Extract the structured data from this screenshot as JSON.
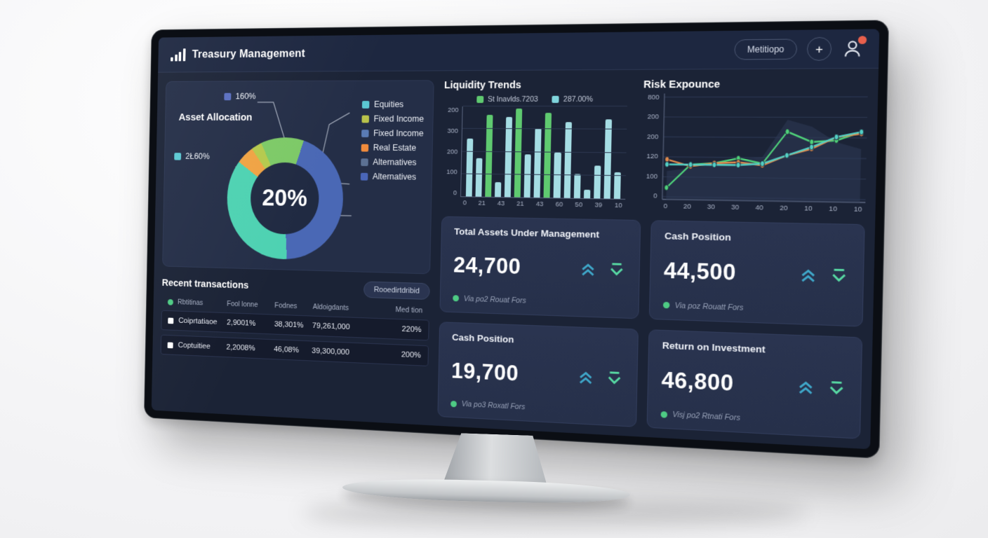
{
  "header": {
    "title": "Treasury Management",
    "menu_button_label": "Metitiopo",
    "add_button_label": "+",
    "notification_dot_color": "#e8604c"
  },
  "asset_allocation": {
    "title": "Asset Allocation",
    "center_value": "20%",
    "callout_labels": [
      {
        "label": "160%",
        "color": "#5a6fc0"
      },
      {
        "label": "2Ł60%",
        "color": "#5bc8d2"
      }
    ],
    "legend": [
      {
        "label": "Equities",
        "color": "#5bc8d2"
      },
      {
        "label": "Fixed Income",
        "color": "#b8c24b"
      },
      {
        "label": "Fixed Income",
        "color": "#5a7bb5"
      },
      {
        "label": "Real Estate",
        "color": "#f08b3c"
      },
      {
        "label": "Alternatives",
        "color": "#5c7193"
      },
      {
        "label": "Alternatives",
        "color": "#4a66b8"
      }
    ],
    "chart_data": {
      "type": "pie",
      "donut": true,
      "start_angle_deg": -25,
      "segments": [
        {
          "name": "Fixed Income",
          "color": "#7dc967",
          "value": 12
        },
        {
          "name": "Alternatives",
          "color": "#4a68b5",
          "value": 44
        },
        {
          "name": "Equities",
          "color": "#4ed2b2",
          "value": 36
        },
        {
          "name": "Real Estate",
          "color": "#f0a344",
          "value": 5
        },
        {
          "name": "Fixed Income",
          "color": "#b5c94d",
          "value": 3
        }
      ]
    }
  },
  "liquidity_trends": {
    "title": "Liquidity Trends",
    "legend": [
      {
        "label": "St Inavlds.7203",
        "color": "#5fca70"
      },
      {
        "label": "287.00%",
        "color": "#7fd4dc"
      }
    ],
    "chart_data": {
      "type": "bar",
      "y_tick_labels": [
        "200",
        "300",
        "200",
        "100",
        "0"
      ],
      "x_tick_labels": [
        "0",
        "21",
        "43",
        "21",
        "43",
        "60",
        "50",
        "39",
        "10"
      ],
      "ylim": [
        0,
        210
      ],
      "values": [
        135,
        90,
        190,
        35,
        185,
        205,
        100,
        160,
        195,
        105,
        175,
        55,
        20,
        75,
        180,
        60
      ],
      "bar_colors": [
        "#a5dde4",
        "#a5dde4",
        "#5fca70",
        "#a5dde4",
        "#a5dde4",
        "#5fca70",
        "#a5dde4",
        "#a5dde4",
        "#5fca70",
        "#a5dde4",
        "#a5dde4",
        "#a5dde4",
        "#a5dde4",
        "#a5dde4",
        "#a5dde4",
        "#a5dde4"
      ]
    }
  },
  "risk_exposure": {
    "title": "Risk Expounce",
    "chart_data": {
      "type": "line",
      "y_tick_labels": [
        "800",
        "200",
        "200",
        "120",
        "100",
        "0"
      ],
      "x_tick_labels": [
        "0",
        "20",
        "30",
        "30",
        "40",
        "20",
        "10",
        "10",
        "10"
      ],
      "ylim": [
        0,
        300
      ],
      "series": [
        {
          "name": "background-area",
          "kind": "area",
          "color": "#2e3a55",
          "values": [
            80,
            90,
            100,
            115,
            125,
            235,
            215,
            170,
            150
          ]
        },
        {
          "name": "green-series",
          "kind": "line",
          "color": "#4fd17a",
          "values": [
            30,
            100,
            105,
            120,
            105,
            200,
            170,
            175,
            200
          ]
        },
        {
          "name": "orange-series",
          "kind": "line",
          "color": "#e08b4e",
          "values": [
            115,
            95,
            105,
            108,
            100,
            130,
            150,
            185,
            195
          ]
        },
        {
          "name": "teal-series",
          "kind": "line",
          "color": "#53cfc4",
          "values": [
            100,
            100,
            100,
            100,
            105,
            130,
            155,
            185,
            200
          ]
        }
      ]
    }
  },
  "stat_cards": [
    {
      "title": "Total Assets Under Management",
      "value": "24,700",
      "footer": "Via po2 Rouat Fors"
    },
    {
      "title": "Cash Position",
      "value": "44,500",
      "footer": "Via poz Rouatt Fors"
    },
    {
      "title": "Cash Position",
      "value": "19,700",
      "footer": "Via po3 Roxatl Fors"
    },
    {
      "title": "Return on Investment",
      "value": "46,800",
      "footer": "Visj po2 Rtnati Fors"
    }
  ],
  "transactions": {
    "title": "Recent transactions",
    "action_button_label": "Rooedirtdribid",
    "columns": [
      "Rbtitinas",
      "Fool lonne",
      "Fodnes",
      "Aldoigdants",
      "Med tion"
    ],
    "rows": [
      {
        "name": "Coiprtatiaoe",
        "col2": "2,9001%",
        "col3": "38,301%",
        "col4": "79,261,000",
        "col5": "220%"
      },
      {
        "name": "Coptuitiee",
        "col2": "2,2008%",
        "col3": "46,08%",
        "col4": "39,300,000",
        "col5": "200%"
      }
    ]
  },
  "colors": {
    "card_up_icon": "#3fa7c9",
    "card_down_icon": "#57d9a3",
    "positive_dot": "#4ecb84",
    "screen_background": "#1b2336",
    "panel_background": "#242e47"
  }
}
